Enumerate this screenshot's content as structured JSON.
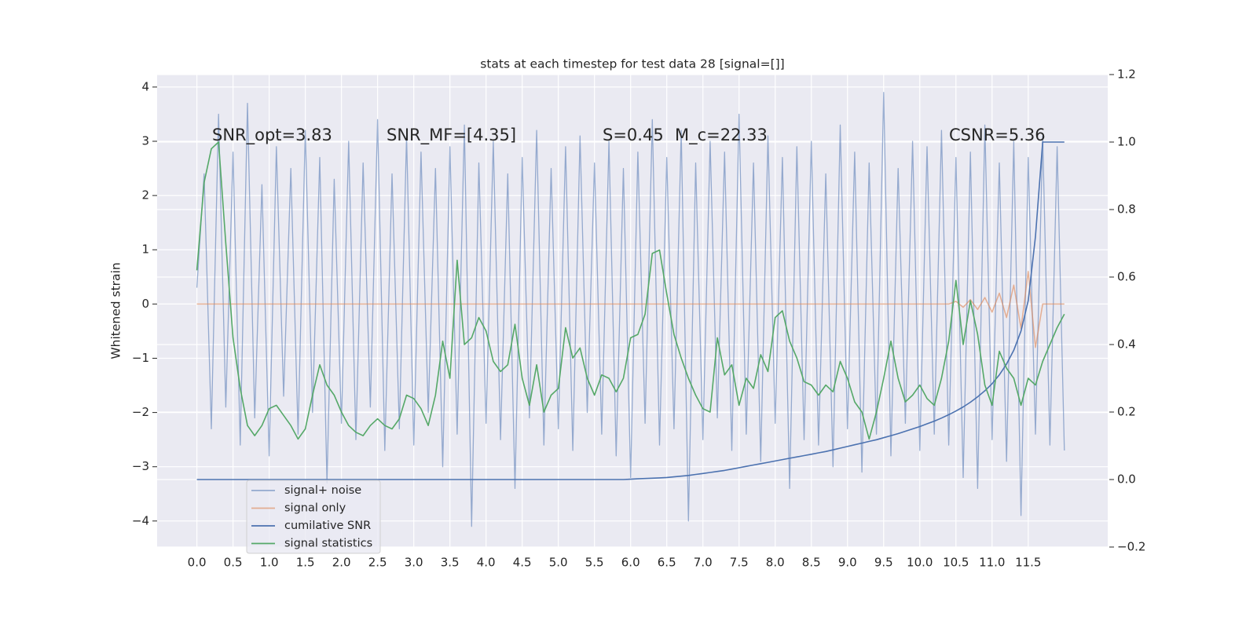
{
  "chart_data": {
    "type": "line",
    "title": "stats at each timestep for test data 28 [signal=[]]",
    "y_label": "Whitened strain",
    "annotations": [
      "SNR_opt=3.83",
      "SNR_MF=[4.35]",
      "S=0.45",
      "M_c=22.33",
      "CSNR=5.36"
    ],
    "grid": true,
    "legend": "lower left",
    "xlim": [
      -0.55,
      12.6
    ],
    "ylim": [
      -4.48,
      4.23
    ],
    "y2lim": [
      -0.2,
      1.2
    ],
    "xticks": [
      {
        "value": 0,
        "label": "0.0"
      },
      0.5,
      {
        "value": 1,
        "label": "1.0"
      },
      1.5,
      {
        "value": 2,
        "label": "2.0"
      },
      2.5,
      {
        "value": 3,
        "label": "3.0"
      },
      3.5,
      {
        "value": 4,
        "label": "4.0"
      },
      4.5,
      {
        "value": 5,
        "label": "5.0"
      },
      5.5,
      {
        "value": 6,
        "label": "6.0"
      },
      6.5,
      {
        "value": 7,
        "label": "7.0"
      },
      7.5,
      {
        "value": 8,
        "label": "8.0"
      },
      8.5,
      {
        "value": 9,
        "label": "9.0"
      },
      9.5,
      {
        "value": 10,
        "label": "10.0"
      },
      10.5,
      {
        "value": 11,
        "label": "11.0"
      },
      11.5
    ],
    "yticks": [
      {
        "value": -4,
        "label": "−4"
      },
      {
        "value": -3,
        "label": "−3"
      },
      {
        "value": -2,
        "label": "−2"
      },
      {
        "value": -1,
        "label": "−1"
      },
      0,
      1,
      2,
      3,
      4
    ],
    "y2ticks": [
      {
        "value": -0.2,
        "label": "−0.2"
      },
      {
        "value": 0,
        "label": "0.0"
      },
      0.2,
      0.4,
      0.6,
      0.8,
      {
        "value": 1,
        "label": "1.0"
      },
      1.2
    ],
    "x": [
      0,
      0.1,
      0.2,
      0.3,
      0.4,
      0.5,
      0.6,
      0.7,
      0.8,
      0.9,
      1,
      1.1,
      1.2,
      1.3,
      1.4,
      1.5,
      1.6,
      1.7,
      1.8,
      1.9,
      2,
      2.1,
      2.2,
      2.3,
      2.4,
      2.5,
      2.6,
      2.7,
      2.8,
      2.9,
      3,
      3.1,
      3.2,
      3.3,
      3.4,
      3.5,
      3.6,
      3.7,
      3.8,
      3.9,
      4,
      4.1,
      4.2,
      4.3,
      4.4,
      4.5,
      4.6,
      4.7,
      4.8,
      4.9,
      5,
      5.1,
      5.2,
      5.3,
      5.4,
      5.5,
      5.6,
      5.7,
      5.8,
      5.9,
      6,
      6.1,
      6.2,
      6.3,
      6.4,
      6.5,
      6.6,
      6.7,
      6.8,
      6.9,
      7,
      7.1,
      7.2,
      7.3,
      7.4,
      7.5,
      7.6,
      7.7,
      7.8,
      7.9,
      8,
      8.1,
      8.2,
      8.3,
      8.4,
      8.5,
      8.6,
      8.7,
      8.8,
      8.9,
      9,
      9.1,
      9.2,
      9.3,
      9.4,
      9.5,
      9.6,
      9.7,
      9.8,
      9.9,
      10,
      10.1,
      10.2,
      10.3,
      10.4,
      10.5,
      10.6,
      10.7,
      10.8,
      10.9,
      11,
      11.1,
      11.2,
      11.3,
      11.4,
      11.5,
      11.6,
      11.7,
      11.8,
      11.9,
      12
    ],
    "series": [
      {
        "name": "signal+ noise",
        "color": "#4c72b0",
        "values": [
          0.3,
          2.4,
          -2.3,
          3.5,
          -1.9,
          2.8,
          -2.6,
          3.7,
          -2.1,
          2.2,
          -2.8,
          2.9,
          -1.7,
          2.5,
          -2.4,
          3.2,
          -2.0,
          2.7,
          -3.3,
          2.3,
          -2.2,
          3.0,
          -2.5,
          2.6,
          -1.9,
          3.4,
          -2.7,
          2.4,
          -2.3,
          3.1,
          -2.6,
          2.8,
          -2.0,
          2.5,
          -3.0,
          2.9,
          -2.4,
          3.3,
          -4.1,
          2.6,
          -2.2,
          3.0,
          -2.5,
          2.4,
          -3.4,
          2.7,
          -2.1,
          3.2,
          -2.6,
          2.5,
          -2.3,
          2.9,
          -2.7,
          3.1,
          -2.0,
          2.6,
          -2.4,
          3.0,
          -2.8,
          2.5,
          -3.2,
          2.8,
          -2.2,
          3.4,
          -2.6,
          2.7,
          -2.3,
          3.2,
          -4.0,
          2.6,
          -2.5,
          3.0,
          -2.1,
          2.8,
          -2.7,
          3.5,
          -2.4,
          2.6,
          -2.9,
          3.1,
          -2.2,
          2.7,
          -3.4,
          2.9,
          -2.5,
          3.0,
          -2.6,
          2.4,
          -3.0,
          3.3,
          -2.3,
          2.8,
          -3.1,
          2.6,
          -2.4,
          3.9,
          -2.8,
          2.5,
          -2.2,
          3.0,
          -2.7,
          2.9,
          -2.4,
          3.2,
          -2.6,
          2.7,
          -3.2,
          2.8,
          -3.4,
          3.3,
          -2.5,
          2.6,
          -2.9,
          3.0,
          -3.9,
          2.7,
          -2.4,
          3.1,
          -2.6,
          2.9,
          -2.7
        ]
      },
      {
        "name": "signal only",
        "color": "#dd8452",
        "values": [
          0,
          0,
          0,
          0,
          0,
          0,
          0,
          0,
          0,
          0,
          0,
          0,
          0,
          0,
          0,
          0,
          0,
          0,
          0,
          0,
          0,
          0,
          0,
          0,
          0,
          0,
          0,
          0,
          0,
          0,
          0,
          0,
          0,
          0,
          0,
          0,
          0,
          0,
          0,
          0,
          0,
          0,
          0,
          0,
          0,
          0,
          0,
          0,
          0,
          0,
          0,
          0,
          0,
          0,
          0,
          0,
          0,
          0,
          0,
          0,
          0,
          0,
          0,
          0,
          0,
          0,
          0,
          0,
          0,
          0,
          0,
          0,
          0,
          0,
          0,
          0,
          0,
          0,
          0,
          0,
          0,
          0,
          0,
          0,
          0,
          0,
          0,
          0,
          0,
          0,
          0,
          0,
          0,
          0,
          0,
          0,
          0,
          0,
          0,
          0,
          0,
          0,
          0,
          0,
          0,
          0.05,
          -0.06,
          0.08,
          -0.1,
          0.12,
          -0.15,
          0.2,
          -0.25,
          0.35,
          -0.45,
          0.6,
          -0.8,
          0,
          0,
          0,
          0
        ]
      },
      {
        "name": "cumilative SNR",
        "color": "#4c72b0",
        "axis": "y2",
        "values": [
          0,
          0,
          0,
          0,
          0,
          0,
          0,
          0,
          0,
          0,
          0,
          0,
          0,
          0,
          0,
          0,
          0,
          0,
          0,
          0,
          0,
          0,
          0,
          0,
          0,
          0,
          0,
          0,
          0,
          0,
          0,
          0,
          0,
          0,
          0,
          0,
          0,
          0,
          0,
          0,
          0,
          0,
          0,
          0,
          0,
          0,
          0,
          0,
          0,
          0,
          0,
          0,
          0,
          0,
          0,
          0,
          0,
          0,
          0,
          0,
          0.001,
          0.002,
          0.003,
          0.004,
          0.005,
          0.006,
          0.008,
          0.01,
          0.012,
          0.015,
          0.018,
          0.021,
          0.024,
          0.027,
          0.031,
          0.035,
          0.039,
          0.043,
          0.047,
          0.051,
          0.055,
          0.059,
          0.063,
          0.067,
          0.071,
          0.075,
          0.079,
          0.083,
          0.088,
          0.093,
          0.098,
          0.103,
          0.108,
          0.113,
          0.118,
          0.124,
          0.13,
          0.136,
          0.143,
          0.15,
          0.157,
          0.165,
          0.173,
          0.182,
          0.192,
          0.203,
          0.215,
          0.229,
          0.245,
          0.263,
          0.284,
          0.31,
          0.342,
          0.383,
          0.44,
          0.53,
          0.72,
          1.0,
          1.0,
          1.0,
          1.0
        ]
      },
      {
        "name": "signal statistics",
        "color": "#55a868",
        "axis": "y2",
        "values": [
          0.62,
          0.88,
          0.98,
          1.0,
          0.7,
          0.42,
          0.27,
          0.16,
          0.13,
          0.16,
          0.21,
          0.22,
          0.19,
          0.16,
          0.12,
          0.15,
          0.25,
          0.34,
          0.28,
          0.25,
          0.2,
          0.16,
          0.14,
          0.13,
          0.16,
          0.18,
          0.16,
          0.15,
          0.18,
          0.25,
          0.24,
          0.21,
          0.16,
          0.25,
          0.41,
          0.3,
          0.65,
          0.4,
          0.42,
          0.48,
          0.44,
          0.35,
          0.32,
          0.34,
          0.46,
          0.3,
          0.22,
          0.34,
          0.2,
          0.25,
          0.27,
          0.45,
          0.36,
          0.39,
          0.3,
          0.25,
          0.31,
          0.3,
          0.26,
          0.3,
          0.42,
          0.43,
          0.49,
          0.67,
          0.68,
          0.55,
          0.43,
          0.36,
          0.3,
          0.25,
          0.21,
          0.2,
          0.42,
          0.31,
          0.34,
          0.22,
          0.3,
          0.27,
          0.37,
          0.32,
          0.48,
          0.5,
          0.41,
          0.36,
          0.29,
          0.28,
          0.25,
          0.28,
          0.26,
          0.35,
          0.3,
          0.23,
          0.2,
          0.12,
          0.2,
          0.3,
          0.41,
          0.3,
          0.23,
          0.25,
          0.28,
          0.24,
          0.22,
          0.3,
          0.41,
          0.59,
          0.4,
          0.53,
          0.43,
          0.28,
          0.22,
          0.38,
          0.33,
          0.3,
          0.22,
          0.3,
          0.28,
          0.35,
          0.4,
          0.45,
          0.49
        ]
      }
    ]
  }
}
